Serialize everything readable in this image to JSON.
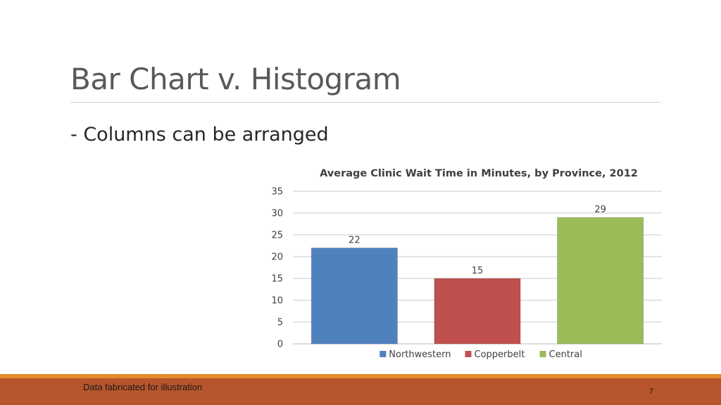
{
  "slide": {
    "title": "Bar Chart v. Histogram",
    "bullet": "- Columns can be arranged",
    "footer_note": "Data fabricated for illustration",
    "page_number": "7"
  },
  "colors": {
    "footer_bar": "#b7552c",
    "footer_accent": "#e68a2e"
  },
  "chart_data": {
    "type": "bar",
    "title": "Average Clinic Wait Time in Minutes, by Province, 2012",
    "xlabel": "",
    "ylabel": "",
    "categories": [
      "Northwestern",
      "Copperbelt",
      "Central"
    ],
    "values": [
      22,
      15,
      29
    ],
    "colors": [
      "#4f81bd",
      "#c0504d",
      "#9bbb59"
    ],
    "ylim": [
      0,
      35
    ],
    "yticks": [
      0,
      5,
      10,
      15,
      20,
      25,
      30,
      35
    ],
    "data_labels": true,
    "grid": true,
    "legend": "bottom"
  }
}
